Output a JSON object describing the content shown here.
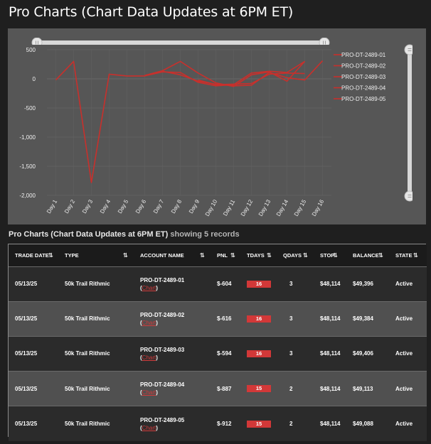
{
  "page": {
    "title": "Pro Charts (Chart Data Updates at 6PM ET)"
  },
  "section": {
    "title": "Pro Charts (Chart Data Updates at 6PM ET)",
    "subtitle": "showing 5 records"
  },
  "colors": {
    "line": "#c8302c",
    "panel": "#565656",
    "badge": "#d23838"
  },
  "chart_data": {
    "type": "line",
    "categories": [
      "Day 1",
      "Day 2",
      "Day 3",
      "Day 4",
      "Day 5",
      "Day 6",
      "Day 7",
      "Day 8",
      "Day 9",
      "Day 10",
      "Day 11",
      "Day 12",
      "Day 13",
      "Day 14",
      "Day 15",
      "Day 16"
    ],
    "yticks": [
      "500",
      "0",
      "-500",
      "-1,000",
      "-1,500",
      "-2,000"
    ],
    "ylim": [
      -2000,
      500
    ],
    "legend_position": "right",
    "series": [
      {
        "name": "PRO-DT-2489-01",
        "values": [
          null,
          null,
          null,
          null,
          null,
          null,
          null,
          null,
          null,
          null,
          null,
          null,
          null,
          null,
          null,
          null
        ]
      },
      {
        "name": "PRO-DT-2489-02",
        "values": [
          -20,
          300,
          -1780,
          80,
          50,
          50,
          120,
          110,
          -60,
          -120,
          -100,
          100,
          130,
          110,
          300,
          null
        ]
      },
      {
        "name": "PRO-DT-2489-03",
        "values": [
          null,
          null,
          null,
          null,
          null,
          60,
          140,
          300,
          100,
          -70,
          -130,
          70,
          120,
          -40,
          300,
          null
        ]
      },
      {
        "name": "PRO-DT-2489-04",
        "values": [
          null,
          null,
          null,
          null,
          null,
          null,
          130,
          70,
          -40,
          -90,
          -120,
          -110,
          110,
          20,
          -20,
          310
        ]
      },
      {
        "name": "PRO-DT-2489-05",
        "values": [
          null,
          null,
          null,
          null,
          null,
          null,
          null,
          null,
          -20,
          -100,
          -90,
          -80,
          80,
          100,
          90,
          null
        ]
      }
    ]
  },
  "table": {
    "headers": [
      "TRADE DATE",
      "TYPE",
      "ACCOUNT NAME",
      "PNL",
      "TDAYS",
      "QDAYS",
      "STOP",
      "BALANCE",
      "STATE"
    ],
    "sort_glyph": "⇅",
    "chart_link": "Chart",
    "rows": [
      {
        "date": "05/13/25",
        "type": "50k Trail Rithmic",
        "account": "PRO-DT-2489-01",
        "pnl": "$-604",
        "tdays": "16",
        "qdays": "3",
        "stop": "$48,114",
        "balance": "$49,396",
        "state": "Active"
      },
      {
        "date": "05/13/25",
        "type": "50k Trail Rithmic",
        "account": "PRO-DT-2489-02",
        "pnl": "$-616",
        "tdays": "16",
        "qdays": "3",
        "stop": "$48,114",
        "balance": "$49,384",
        "state": "Active"
      },
      {
        "date": "05/13/25",
        "type": "50k Trail Rithmic",
        "account": "PRO-DT-2489-03",
        "pnl": "$-594",
        "tdays": "16",
        "qdays": "3",
        "stop": "$48,114",
        "balance": "$49,406",
        "state": "Active"
      },
      {
        "date": "05/13/25",
        "type": "50k Trail Rithmic",
        "account": "PRO-DT-2489-04",
        "pnl": "$-887",
        "tdays": "15",
        "qdays": "2",
        "stop": "$48,114",
        "balance": "$49,113",
        "state": "Active"
      },
      {
        "date": "05/13/25",
        "type": "50k Trail Rithmic",
        "account": "PRO-DT-2489-05",
        "pnl": "$-912",
        "tdays": "15",
        "qdays": "2",
        "stop": "$48,114",
        "balance": "$49,088",
        "state": "Active"
      }
    ]
  }
}
